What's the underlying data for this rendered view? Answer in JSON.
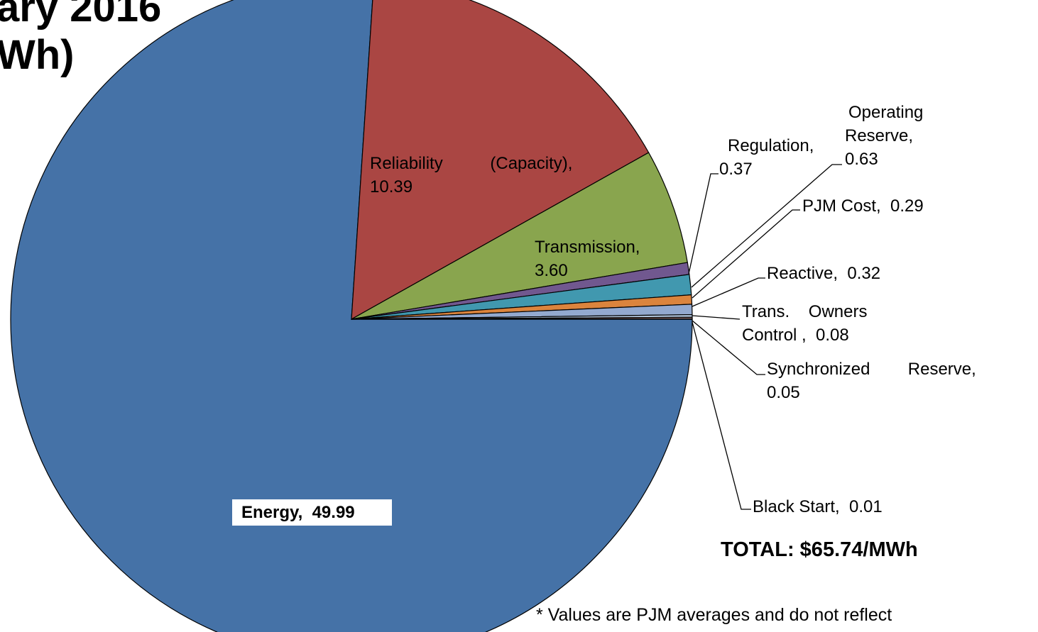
{
  "chart_data": {
    "type": "pie",
    "title": [
      "ary 2016",
      "Wh)"
    ],
    "series": [
      {
        "name": null,
        "values": [
          49.99,
          10.39,
          3.6,
          0.37,
          0.63,
          0.29,
          0.32,
          0.08,
          0.05,
          0.01
        ],
        "colors": [
          "#4572a7",
          "#aa4643",
          "#89a54e",
          "#71588f",
          "#4198af",
          "#db843d",
          "#93a9cf",
          "#b9cde5",
          "#a47d7c",
          "#404040"
        ]
      }
    ],
    "labels": [
      [
        "Energy,  49.99"
      ],
      [
        "Reliability          (Capacity),",
        "10.39"
      ],
      [
        "Transmission,",
        "3.60"
      ],
      [
        "Regulation,",
        "0.37"
      ],
      [
        "Operating",
        "Reserve,",
        "0.63"
      ],
      [
        "PJM Cost,  0.29"
      ],
      [
        "Reactive,  0.32"
      ],
      [
        "Trans.    Owners",
        "Control ,  0.08"
      ],
      [
        "Synchronized        Reserve,",
        "0.05"
      ],
      [
        "Black Start,  0.01"
      ]
    ],
    "annotations": [
      "TOTAL: $65.74/MWh",
      "* Values are PJM averages and do not reflect"
    ]
  }
}
